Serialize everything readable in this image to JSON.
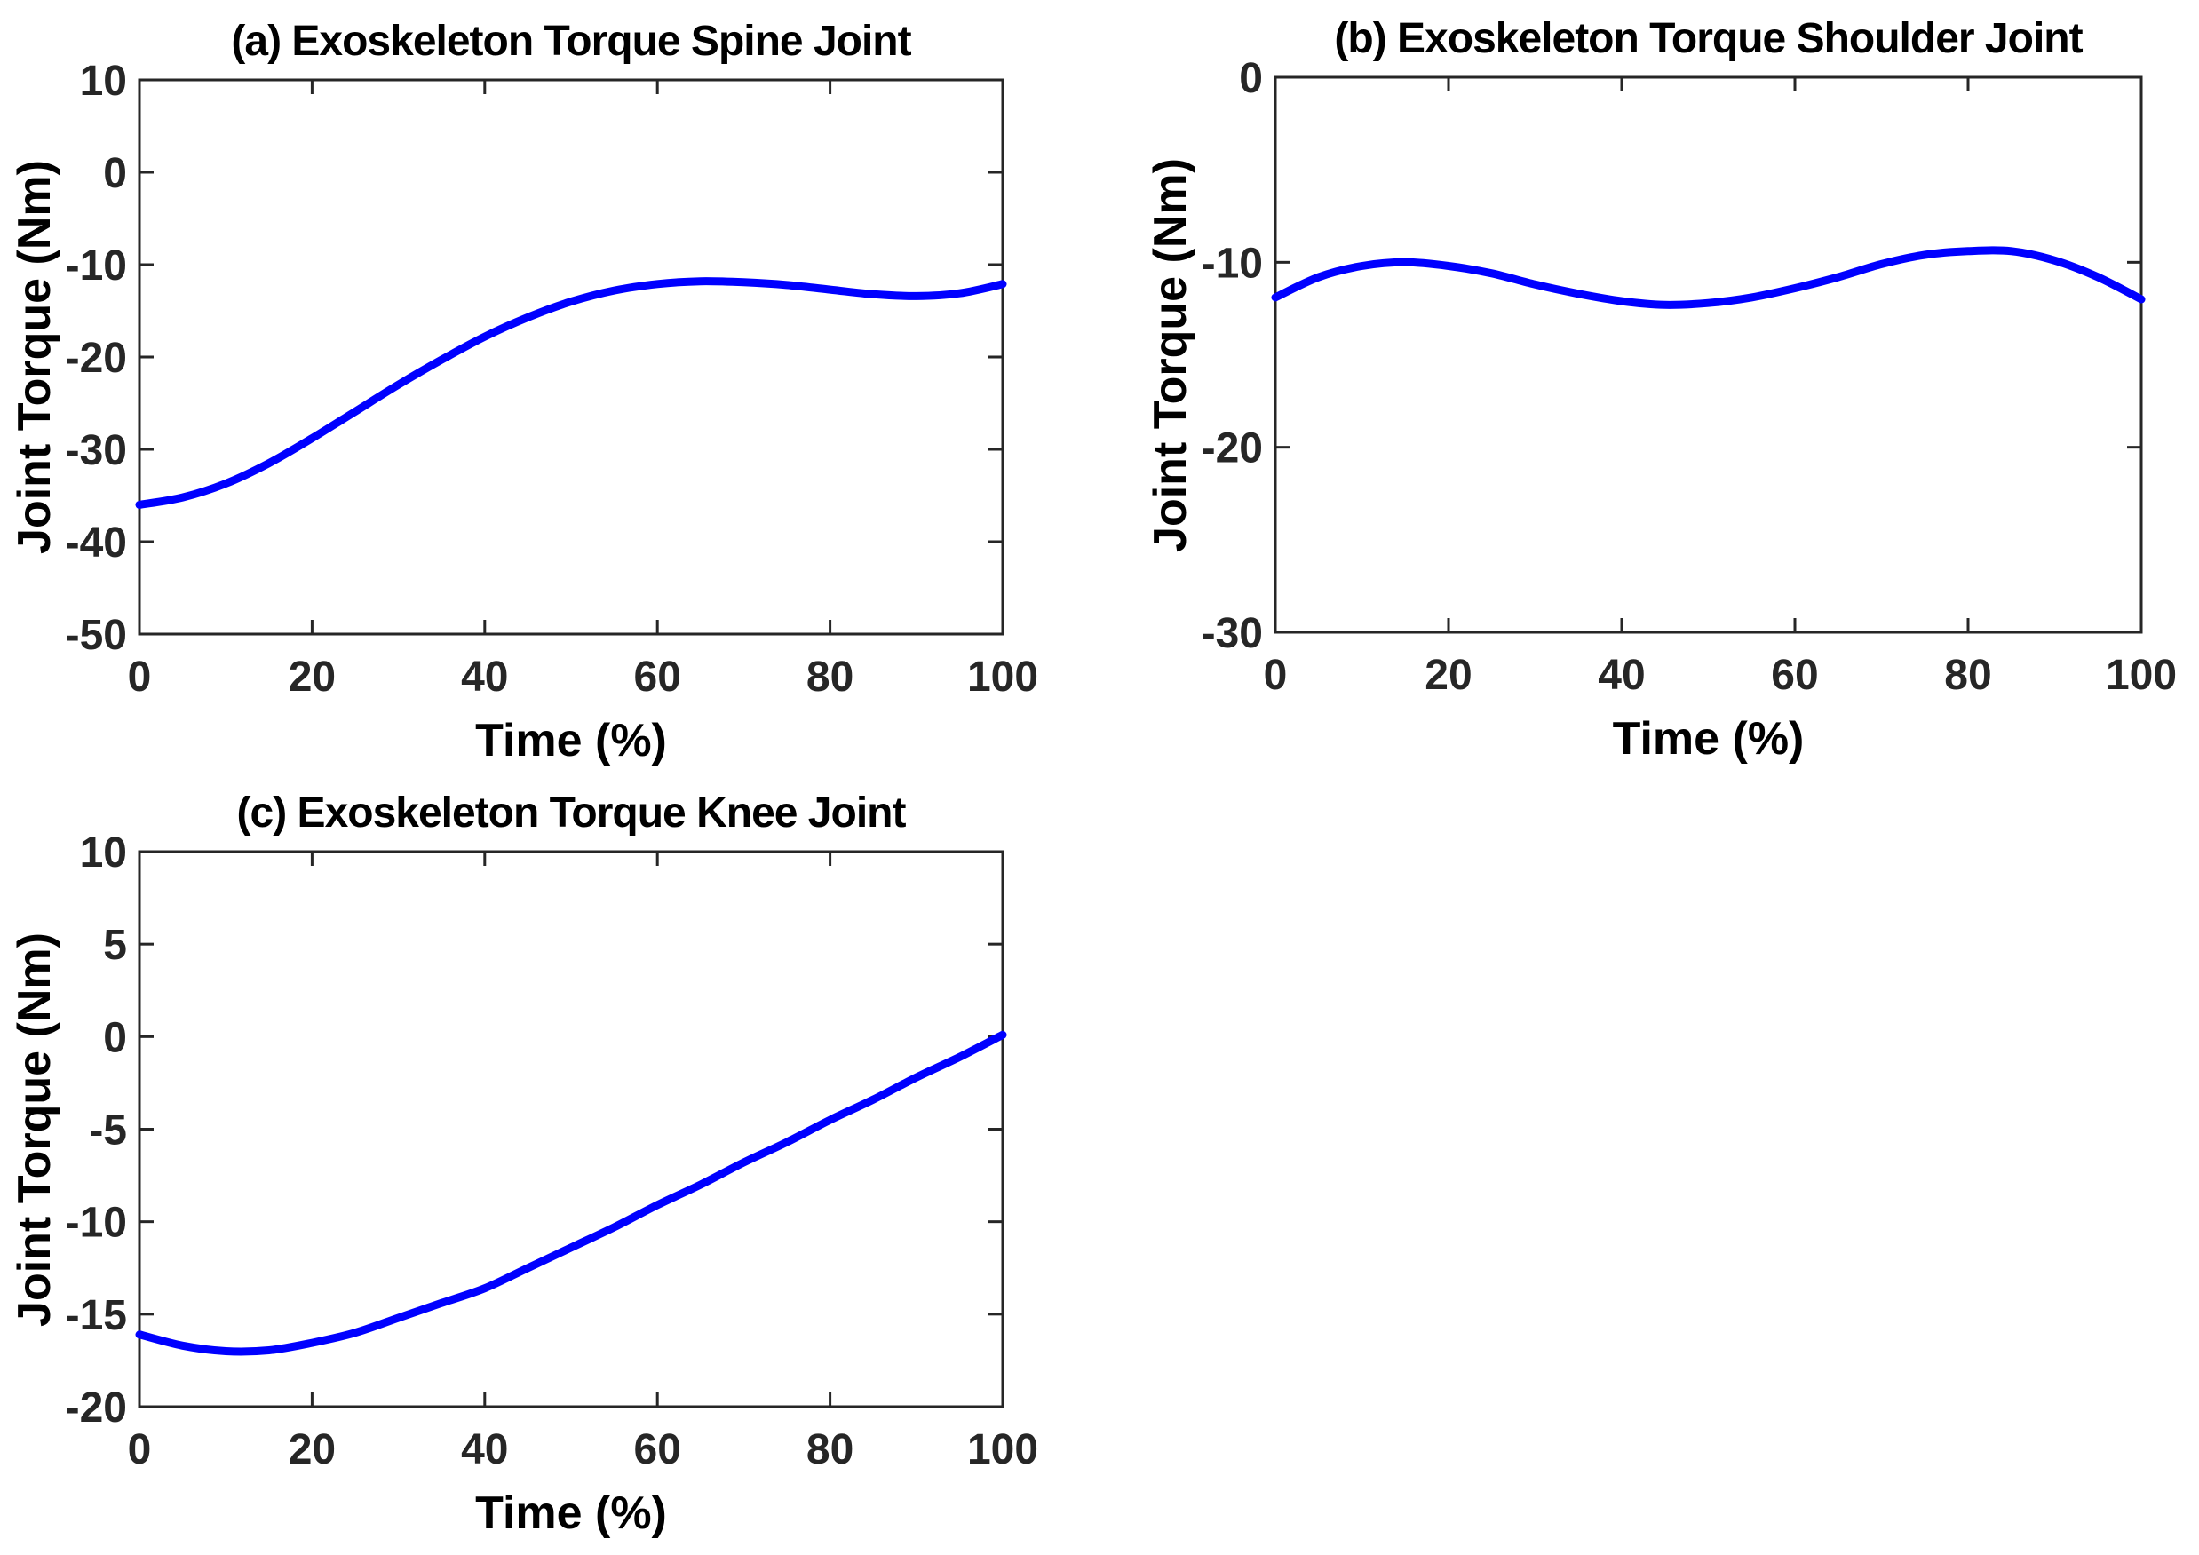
{
  "figure": {
    "background": "#ffffff",
    "layout": "2x2 grid, bottom-right quadrant empty"
  },
  "style": {
    "axis_color": "#262626",
    "tick_label_color": "#262626",
    "text_color": "#000000"
  },
  "chart_data": [
    {
      "id": "a",
      "type": "line",
      "title": "(a) Exoskeleton Torque Spine Joint",
      "xlabel": "Time (%)",
      "ylabel": "Joint Torque (Nm)",
      "xlim": [
        0,
        100
      ],
      "ylim": [
        -50,
        10
      ],
      "xticks": [
        0,
        20,
        40,
        60,
        80,
        100
      ],
      "yticks": [
        10,
        0,
        -10,
        -20,
        -30,
        -40,
        -50
      ],
      "grid": false,
      "box": true,
      "legend": null,
      "line_color": "#0000ff",
      "line_width": 9,
      "x": [
        0,
        5,
        10,
        15,
        20,
        25,
        30,
        35,
        40,
        45,
        50,
        55,
        60,
        65,
        70,
        75,
        80,
        85,
        90,
        95,
        100
      ],
      "y": [
        -36.0,
        -35.2,
        -33.7,
        -31.5,
        -28.8,
        -25.9,
        -23.0,
        -20.3,
        -17.8,
        -15.7,
        -14.0,
        -12.8,
        -12.1,
        -11.8,
        -11.9,
        -12.2,
        -12.7,
        -13.2,
        -13.4,
        -13.1,
        -12.1
      ]
    },
    {
      "id": "b",
      "type": "line",
      "title": "(b) Exoskeleton Torque Shoulder Joint",
      "xlabel": "Time (%)",
      "ylabel": "Joint Torque (Nm)",
      "xlim": [
        0,
        100
      ],
      "ylim": [
        -30,
        0
      ],
      "xticks": [
        0,
        20,
        40,
        60,
        80,
        100
      ],
      "yticks": [
        0,
        -10,
        -20,
        -30
      ],
      "grid": false,
      "box": true,
      "legend": null,
      "line_color": "#0000ff",
      "line_width": 9,
      "x": [
        0,
        5,
        10,
        15,
        20,
        25,
        30,
        35,
        40,
        45,
        50,
        55,
        60,
        65,
        70,
        75,
        80,
        85,
        90,
        95,
        100
      ],
      "y": [
        -11.9,
        -10.8,
        -10.2,
        -10.0,
        -10.2,
        -10.6,
        -11.2,
        -11.7,
        -12.1,
        -12.3,
        -12.2,
        -11.9,
        -11.4,
        -10.8,
        -10.1,
        -9.6,
        -9.4,
        -9.4,
        -9.9,
        -10.8,
        -12.0
      ]
    },
    {
      "id": "c",
      "type": "line",
      "title": "(c) Exoskeleton Torque Knee Joint",
      "xlabel": "Time (%)",
      "ylabel": "Joint Torque (Nm)",
      "xlim": [
        0,
        100
      ],
      "ylim": [
        -20,
        10
      ],
      "xticks": [
        0,
        20,
        40,
        60,
        80,
        100
      ],
      "yticks": [
        10,
        5,
        0,
        -5,
        -10,
        -15,
        -20
      ],
      "grid": false,
      "box": true,
      "legend": null,
      "line_color": "#0000ff",
      "line_width": 9,
      "x": [
        0,
        5,
        10,
        15,
        20,
        25,
        30,
        35,
        40,
        45,
        50,
        55,
        60,
        65,
        70,
        75,
        80,
        85,
        90,
        95,
        100
      ],
      "y": [
        -16.1,
        -16.7,
        -17.0,
        -16.95,
        -16.55,
        -16.0,
        -15.2,
        -14.4,
        -13.6,
        -12.5,
        -11.4,
        -10.3,
        -9.1,
        -8.0,
        -6.8,
        -5.7,
        -4.5,
        -3.4,
        -2.2,
        -1.1,
        0.1
      ]
    }
  ]
}
